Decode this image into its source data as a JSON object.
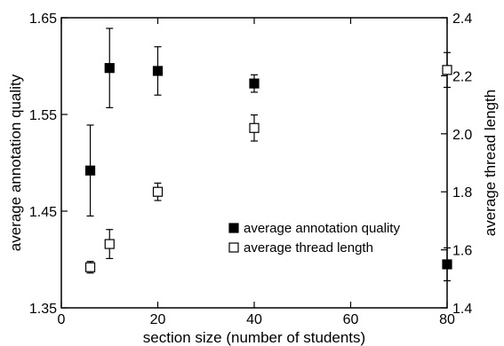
{
  "chart_data": {
    "type": "scatter",
    "title": "",
    "xlabel": "section size (number of students)",
    "ylabel_left": "average annotation quality",
    "ylabel_right": "average thread length",
    "xlim": [
      0,
      80
    ],
    "ylim_left": [
      1.35,
      1.65
    ],
    "ylim_right": [
      1.4,
      2.4
    ],
    "x_ticks": [
      "0",
      "20",
      "40",
      "60",
      "80"
    ],
    "x_tick_values": [
      0,
      20,
      40,
      60,
      80
    ],
    "y_left_ticks": [
      "1.35",
      "1.45",
      "1.55",
      "1.65"
    ],
    "y_left_tick_values": [
      1.35,
      1.45,
      1.55,
      1.65
    ],
    "y_right_ticks": [
      "1.4",
      "1.6",
      "1.8",
      "2.0",
      "2.2",
      "2.4"
    ],
    "y_right_tick_values": [
      1.4,
      1.6,
      1.8,
      2.0,
      2.2,
      2.4
    ],
    "grid": false,
    "legend_position": "lower-right",
    "series": [
      {
        "name": "average annotation quality",
        "axis": "left",
        "marker": "filled-square",
        "color": "#000000",
        "points": [
          {
            "x": 6,
            "y": 1.492,
            "err": 0.047
          },
          {
            "x": 10,
            "y": 1.598,
            "err": 0.041
          },
          {
            "x": 20,
            "y": 1.595,
            "err": 0.025
          },
          {
            "x": 40,
            "y": 1.582,
            "err": 0.009
          },
          {
            "x": 80,
            "y": 1.395,
            "err": 0.017
          }
        ]
      },
      {
        "name": "average thread length",
        "axis": "right",
        "marker": "open-square",
        "color": "#000000",
        "points": [
          {
            "x": 6,
            "y": 1.54,
            "err": 0.02
          },
          {
            "x": 10,
            "y": 1.62,
            "err": 0.05
          },
          {
            "x": 20,
            "y": 1.8,
            "err": 0.03
          },
          {
            "x": 40,
            "y": 2.02,
            "err": 0.045
          },
          {
            "x": 80,
            "y": 2.22,
            "err": 0.06
          }
        ]
      }
    ]
  }
}
